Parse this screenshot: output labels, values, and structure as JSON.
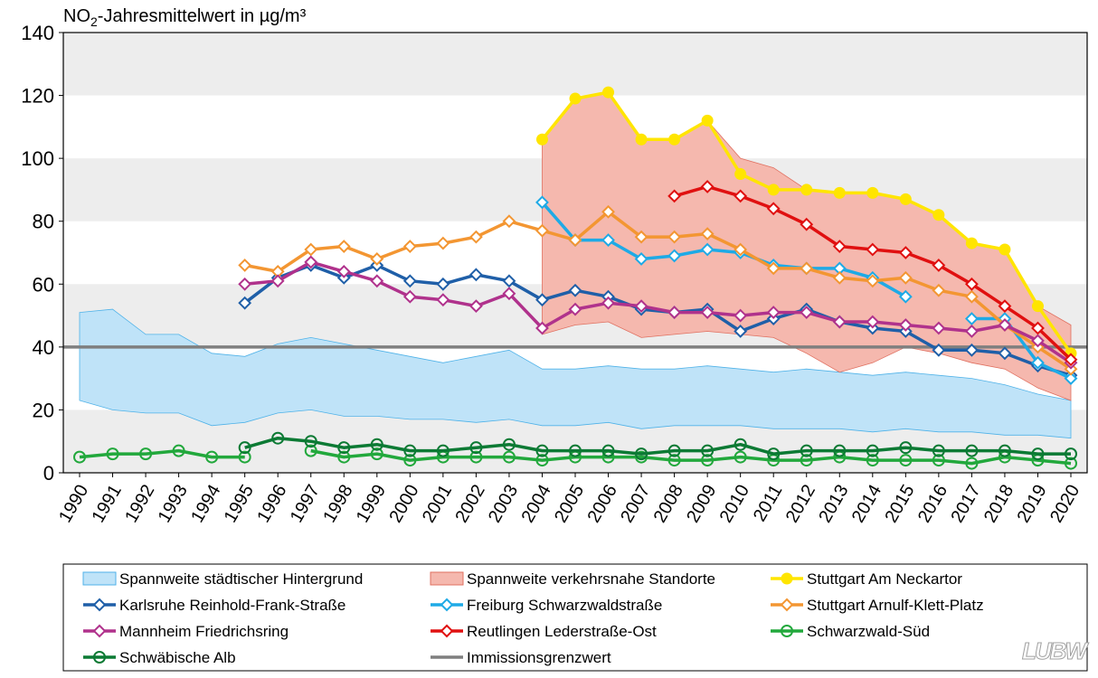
{
  "chart_data": {
    "type": "line",
    "title": "NO",
    "title_sub": "2",
    "title_rest": "-Jahresmittelwert in µg/m³",
    "ylim": [
      0,
      140
    ],
    "yticks": [
      0,
      20,
      40,
      60,
      80,
      100,
      120,
      140
    ],
    "x": [
      1990,
      1991,
      1992,
      1993,
      1994,
      1995,
      1996,
      1997,
      1998,
      1999,
      2000,
      2001,
      2002,
      2003,
      2004,
      2005,
      2006,
      2007,
      2008,
      2009,
      2010,
      2011,
      2012,
      2013,
      2014,
      2015,
      2016,
      2017,
      2018,
      2019,
      2020
    ],
    "limit_value": 40,
    "bands": [
      {
        "name": "Spannweite städtischer Hintergrund",
        "fill": "#bfe3f8",
        "stroke": "#4fb2e8",
        "x": [
          1990,
          1991,
          1992,
          1993,
          1994,
          1995,
          1996,
          1997,
          1998,
          1999,
          2000,
          2001,
          2002,
          2003,
          2004,
          2005,
          2006,
          2007,
          2008,
          2009,
          2010,
          2011,
          2012,
          2013,
          2014,
          2015,
          2016,
          2017,
          2018,
          2019,
          2020
        ],
        "upper": [
          51,
          52,
          44,
          44,
          38,
          37,
          41,
          43,
          41,
          39,
          37,
          35,
          37,
          39,
          33,
          33,
          34,
          33,
          33,
          34,
          33,
          32,
          33,
          32,
          31,
          32,
          31,
          30,
          28,
          25,
          23
        ],
        "lower": [
          23,
          20,
          19,
          19,
          15,
          16,
          19,
          20,
          18,
          18,
          17,
          17,
          16,
          17,
          15,
          15,
          16,
          14,
          15,
          15,
          15,
          14,
          14,
          14,
          13,
          14,
          13,
          13,
          12,
          12,
          11
        ]
      },
      {
        "name": "Spannweite verkehrsnahe Standorte",
        "fill": "#f5b8ae",
        "stroke": "#e07060",
        "x": [
          2004,
          2005,
          2006,
          2007,
          2008,
          2009,
          2010,
          2011,
          2012,
          2013,
          2014,
          2015,
          2016,
          2017,
          2018,
          2019,
          2020
        ],
        "upper": [
          106,
          119,
          121,
          106,
          106,
          112,
          100,
          97,
          90,
          89,
          89,
          87,
          82,
          73,
          71,
          53,
          47
        ],
        "lower": [
          44,
          47,
          48,
          43,
          44,
          45,
          44,
          43,
          38,
          32,
          35,
          40,
          38,
          35,
          33,
          27,
          23
        ]
      }
    ],
    "series": [
      {
        "name": "Stuttgart Am Neckartor",
        "color": "#ffe500",
        "marker": "dot",
        "x": [
          2004,
          2005,
          2006,
          2007,
          2008,
          2009,
          2010,
          2011,
          2012,
          2013,
          2014,
          2015,
          2016,
          2017,
          2018,
          2019,
          2020
        ],
        "values": [
          106,
          119,
          121,
          106,
          106,
          112,
          95,
          90,
          90,
          89,
          89,
          87,
          82,
          73,
          71,
          53,
          38
        ]
      },
      {
        "name": "Karlsruhe Reinhold-Frank-Straße",
        "color": "#1f5fa8",
        "marker": "diamond",
        "x": [
          1995,
          1996,
          1997,
          1998,
          1999,
          2000,
          2001,
          2002,
          2003,
          2004,
          2005,
          2006,
          2007,
          2008,
          2009,
          2010,
          2011,
          2012,
          2013,
          2014,
          2015,
          2016,
          2017,
          2018,
          2019,
          2020
        ],
        "values": [
          54,
          62,
          66,
          62,
          66,
          61,
          60,
          63,
          61,
          55,
          58,
          56,
          52,
          51,
          52,
          45,
          49,
          52,
          48,
          46,
          45,
          39,
          39,
          38,
          34,
          31
        ]
      },
      {
        "name": "Freiburg Schwarzwaldstraße",
        "color": "#1eaae6",
        "marker": "diamond",
        "x": [
          2004,
          2005,
          2006,
          2007,
          2008,
          2009,
          2010,
          2011,
          2012,
          2013,
          2014,
          2015,
          null,
          2017,
          2018,
          2019,
          2020
        ],
        "values": [
          86,
          74,
          74,
          68,
          69,
          71,
          70,
          66,
          65,
          65,
          62,
          56,
          null,
          49,
          49,
          35,
          30
        ]
      },
      {
        "name": "Stuttgart Arnulf-Klett-Platz",
        "color": "#f39632",
        "marker": "diamond",
        "x": [
          1995,
          1996,
          1997,
          1998,
          1999,
          2000,
          2001,
          2002,
          2003,
          2004,
          2005,
          2006,
          2007,
          2008,
          2009,
          2010,
          2011,
          2012,
          2013,
          2014,
          2015,
          2016,
          2017,
          2018,
          2019,
          2020
        ],
        "values": [
          66,
          64,
          71,
          72,
          68,
          72,
          73,
          75,
          80,
          77,
          74,
          83,
          75,
          75,
          76,
          71,
          65,
          65,
          62,
          61,
          62,
          58,
          56,
          47,
          40,
          33
        ]
      },
      {
        "name": "Mannheim Friedrichsring",
        "color": "#b0328c",
        "marker": "diamond",
        "x": [
          1995,
          1996,
          1997,
          1998,
          1999,
          2000,
          2001,
          2002,
          2003,
          2004,
          2005,
          2006,
          2007,
          2008,
          2009,
          2010,
          2011,
          2012,
          2013,
          2014,
          2015,
          2016,
          2017,
          2018,
          2019,
          2020
        ],
        "values": [
          60,
          61,
          67,
          64,
          61,
          56,
          55,
          53,
          57,
          46,
          52,
          54,
          53,
          51,
          51,
          50,
          51,
          51,
          48,
          48,
          47,
          46,
          45,
          47,
          42,
          35
        ]
      },
      {
        "name": "Reutlingen Lederstraße-Ost",
        "color": "#e01010",
        "marker": "diamond",
        "x": [
          2008,
          2009,
          2010,
          2011,
          2012,
          2013,
          2014,
          2015,
          2016,
          2017,
          2018,
          2019,
          2020
        ],
        "values": [
          88,
          91,
          88,
          84,
          79,
          72,
          71,
          70,
          66,
          60,
          53,
          46,
          36
        ]
      },
      {
        "name": "Schwarzwald-Süd",
        "color": "#22a83c",
        "marker": "circle",
        "x": [
          1990,
          1991,
          1992,
          1993,
          1994,
          1995,
          1996,
          1997,
          1998,
          1999,
          2000,
          2001,
          2002,
          2003,
          2004,
          2005,
          2006,
          2007,
          2008,
          2009,
          2010,
          2011,
          2012,
          2013,
          2014,
          2015,
          2016,
          2017,
          2018,
          2019,
          2020
        ],
        "values": [
          5,
          6,
          6,
          7,
          5,
          5,
          null,
          7,
          5,
          6,
          4,
          5,
          5,
          5,
          4,
          5,
          5,
          5,
          4,
          4,
          5,
          4,
          4,
          5,
          4,
          4,
          4,
          3,
          5,
          4,
          3
        ]
      },
      {
        "name": "Schwäbische Alb",
        "color": "#0c7a34",
        "marker": "circle",
        "x": [
          1995,
          1996,
          1997,
          1998,
          1999,
          2000,
          2001,
          2002,
          2003,
          2004,
          2005,
          2006,
          2007,
          2008,
          2009,
          2010,
          2011,
          2012,
          2013,
          2014,
          2015,
          2016,
          2017,
          2018,
          2019,
          2020
        ],
        "values": [
          8,
          11,
          10,
          8,
          9,
          7,
          7,
          8,
          9,
          7,
          7,
          7,
          6,
          7,
          7,
          9,
          6,
          7,
          7,
          7,
          8,
          7,
          7,
          7,
          6,
          6
        ]
      }
    ],
    "limit_series": {
      "name": "Immissionsgrenzwert",
      "color": "#7f7f7f"
    },
    "legend": {
      "placement": "bottom",
      "entries": [
        "Spannweite städtischer Hintergrund",
        "Spannweite verkehrsnahe Standorte",
        "Stuttgart Am Neckartor",
        "Karlsruhe Reinhold-Frank-Straße",
        "Freiburg Schwarzwaldstraße",
        "Stuttgart Arnulf-Klett-Platz",
        "Mannheim Friedrichsring",
        "Reutlingen Lederstraße-Ost",
        "Schwarzwald-Süd",
        "Schwäbische Alb",
        "Immissionsgrenzwert"
      ]
    },
    "grid": "alternating-bands"
  },
  "logo": "LUBW"
}
